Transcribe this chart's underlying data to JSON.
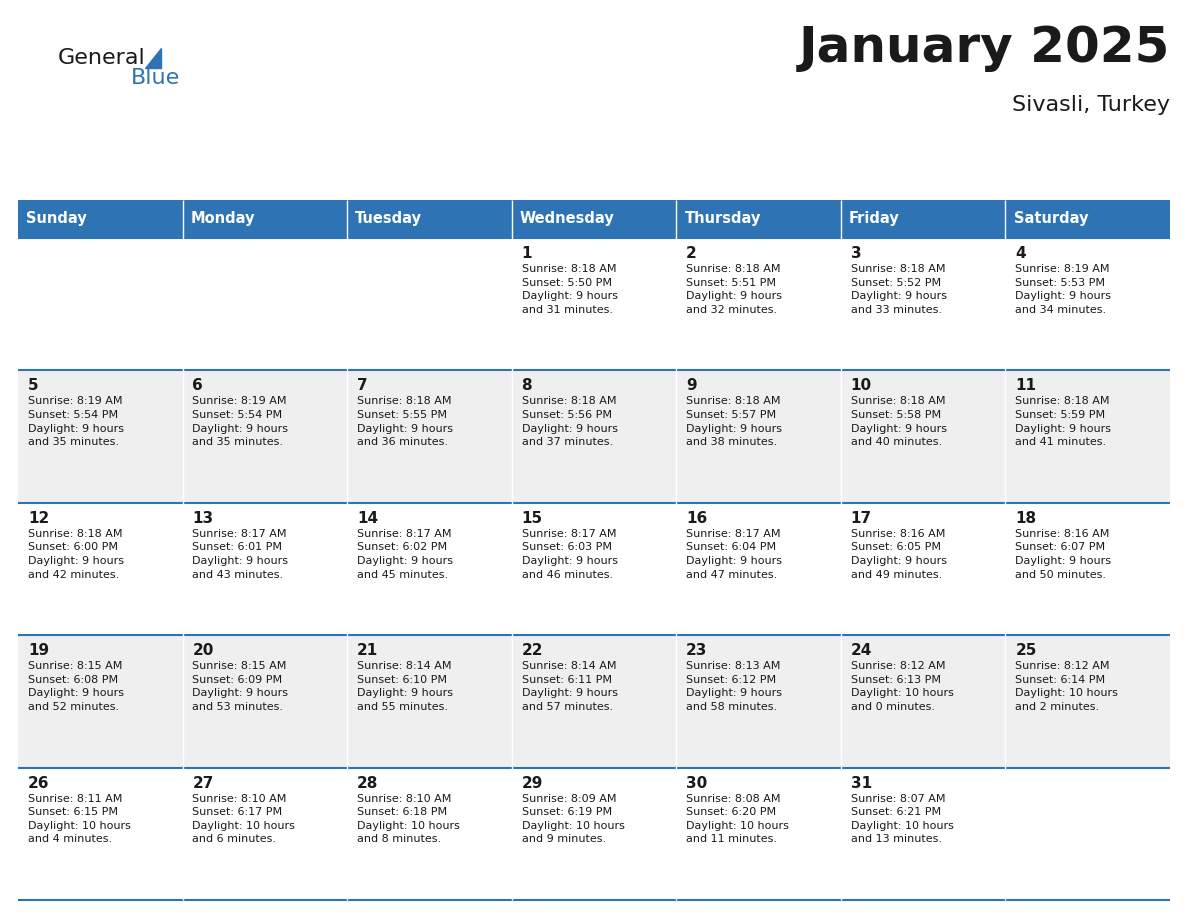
{
  "title": "January 2025",
  "subtitle": "Sivasli, Turkey",
  "days_of_week": [
    "Sunday",
    "Monday",
    "Tuesday",
    "Wednesday",
    "Thursday",
    "Friday",
    "Saturday"
  ],
  "header_bg": "#2E74B5",
  "header_text_color": "#FFFFFF",
  "row_bg_light": "#EFEFEF",
  "row_bg_white": "#FFFFFF",
  "cell_border_color": "#2E74B5",
  "title_color": "#1A1A1A",
  "subtitle_color": "#1A1A1A",
  "day_num_color": "#1A1A1A",
  "cell_text_color": "#1A1A1A",
  "logo_black": "#1A1A1A",
  "logo_blue": "#2E74B5",
  "calendar_data": [
    [
      {
        "day": "",
        "info": ""
      },
      {
        "day": "",
        "info": ""
      },
      {
        "day": "",
        "info": ""
      },
      {
        "day": "1",
        "info": "Sunrise: 8:18 AM\nSunset: 5:50 PM\nDaylight: 9 hours\nand 31 minutes."
      },
      {
        "day": "2",
        "info": "Sunrise: 8:18 AM\nSunset: 5:51 PM\nDaylight: 9 hours\nand 32 minutes."
      },
      {
        "day": "3",
        "info": "Sunrise: 8:18 AM\nSunset: 5:52 PM\nDaylight: 9 hours\nand 33 minutes."
      },
      {
        "day": "4",
        "info": "Sunrise: 8:19 AM\nSunset: 5:53 PM\nDaylight: 9 hours\nand 34 minutes."
      }
    ],
    [
      {
        "day": "5",
        "info": "Sunrise: 8:19 AM\nSunset: 5:54 PM\nDaylight: 9 hours\nand 35 minutes."
      },
      {
        "day": "6",
        "info": "Sunrise: 8:19 AM\nSunset: 5:54 PM\nDaylight: 9 hours\nand 35 minutes."
      },
      {
        "day": "7",
        "info": "Sunrise: 8:18 AM\nSunset: 5:55 PM\nDaylight: 9 hours\nand 36 minutes."
      },
      {
        "day": "8",
        "info": "Sunrise: 8:18 AM\nSunset: 5:56 PM\nDaylight: 9 hours\nand 37 minutes."
      },
      {
        "day": "9",
        "info": "Sunrise: 8:18 AM\nSunset: 5:57 PM\nDaylight: 9 hours\nand 38 minutes."
      },
      {
        "day": "10",
        "info": "Sunrise: 8:18 AM\nSunset: 5:58 PM\nDaylight: 9 hours\nand 40 minutes."
      },
      {
        "day": "11",
        "info": "Sunrise: 8:18 AM\nSunset: 5:59 PM\nDaylight: 9 hours\nand 41 minutes."
      }
    ],
    [
      {
        "day": "12",
        "info": "Sunrise: 8:18 AM\nSunset: 6:00 PM\nDaylight: 9 hours\nand 42 minutes."
      },
      {
        "day": "13",
        "info": "Sunrise: 8:17 AM\nSunset: 6:01 PM\nDaylight: 9 hours\nand 43 minutes."
      },
      {
        "day": "14",
        "info": "Sunrise: 8:17 AM\nSunset: 6:02 PM\nDaylight: 9 hours\nand 45 minutes."
      },
      {
        "day": "15",
        "info": "Sunrise: 8:17 AM\nSunset: 6:03 PM\nDaylight: 9 hours\nand 46 minutes."
      },
      {
        "day": "16",
        "info": "Sunrise: 8:17 AM\nSunset: 6:04 PM\nDaylight: 9 hours\nand 47 minutes."
      },
      {
        "day": "17",
        "info": "Sunrise: 8:16 AM\nSunset: 6:05 PM\nDaylight: 9 hours\nand 49 minutes."
      },
      {
        "day": "18",
        "info": "Sunrise: 8:16 AM\nSunset: 6:07 PM\nDaylight: 9 hours\nand 50 minutes."
      }
    ],
    [
      {
        "day": "19",
        "info": "Sunrise: 8:15 AM\nSunset: 6:08 PM\nDaylight: 9 hours\nand 52 minutes."
      },
      {
        "day": "20",
        "info": "Sunrise: 8:15 AM\nSunset: 6:09 PM\nDaylight: 9 hours\nand 53 minutes."
      },
      {
        "day": "21",
        "info": "Sunrise: 8:14 AM\nSunset: 6:10 PM\nDaylight: 9 hours\nand 55 minutes."
      },
      {
        "day": "22",
        "info": "Sunrise: 8:14 AM\nSunset: 6:11 PM\nDaylight: 9 hours\nand 57 minutes."
      },
      {
        "day": "23",
        "info": "Sunrise: 8:13 AM\nSunset: 6:12 PM\nDaylight: 9 hours\nand 58 minutes."
      },
      {
        "day": "24",
        "info": "Sunrise: 8:12 AM\nSunset: 6:13 PM\nDaylight: 10 hours\nand 0 minutes."
      },
      {
        "day": "25",
        "info": "Sunrise: 8:12 AM\nSunset: 6:14 PM\nDaylight: 10 hours\nand 2 minutes."
      }
    ],
    [
      {
        "day": "26",
        "info": "Sunrise: 8:11 AM\nSunset: 6:15 PM\nDaylight: 10 hours\nand 4 minutes."
      },
      {
        "day": "27",
        "info": "Sunrise: 8:10 AM\nSunset: 6:17 PM\nDaylight: 10 hours\nand 6 minutes."
      },
      {
        "day": "28",
        "info": "Sunrise: 8:10 AM\nSunset: 6:18 PM\nDaylight: 10 hours\nand 8 minutes."
      },
      {
        "day": "29",
        "info": "Sunrise: 8:09 AM\nSunset: 6:19 PM\nDaylight: 10 hours\nand 9 minutes."
      },
      {
        "day": "30",
        "info": "Sunrise: 8:08 AM\nSunset: 6:20 PM\nDaylight: 10 hours\nand 11 minutes."
      },
      {
        "day": "31",
        "info": "Sunrise: 8:07 AM\nSunset: 6:21 PM\nDaylight: 10 hours\nand 13 minutes."
      },
      {
        "day": "",
        "info": ""
      }
    ]
  ]
}
